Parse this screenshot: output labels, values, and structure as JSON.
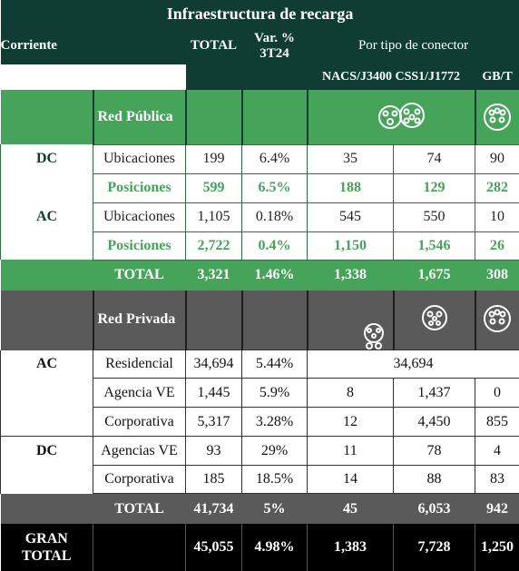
{
  "title": "Infraestructura de recarga",
  "header": {
    "corriente": "Corriente",
    "total": "TOTAL",
    "var": "Var. %",
    "var_period": "3T24",
    "por_tipo": "Por tipo de conector",
    "connectors": [
      "NACS/J3400",
      "CSS1/J1772",
      "GB/T"
    ]
  },
  "publica": {
    "label": "Red Pública",
    "dc_label": "DC",
    "ac_label": "AC",
    "rows": [
      {
        "type": "Ubicaciones",
        "total": "199",
        "var": "6.4%",
        "c1": "35",
        "c2": "74",
        "c3": "90"
      },
      {
        "type": "Posiciones",
        "total": "599",
        "var": "6.5%",
        "c1": "188",
        "c2": "129",
        "c3": "282"
      },
      {
        "type": "Ubicaciones",
        "total": "1,105",
        "var": "0.18%",
        "c1": "545",
        "c2": "550",
        "c3": "10"
      },
      {
        "type": "Posiciones",
        "total": "2,722",
        "var": "0.4%",
        "c1": "1,150",
        "c2": "1,546",
        "c3": "26"
      }
    ],
    "total": {
      "label": "TOTAL",
      "total": "3,321",
      "var": "1.46%",
      "c1": "1,338",
      "c2": "1,675",
      "c3": "308"
    }
  },
  "privada": {
    "label": "Red Privada",
    "ac_label": "AC",
    "dc_label": "DC",
    "residencial": {
      "type": "Residencial",
      "total": "34,694",
      "var": "5.44%",
      "merged": "34,694"
    },
    "rows": [
      {
        "type": "Agencia VE",
        "total": "1,445",
        "var": "5.9%",
        "c1": "8",
        "c2": "1,437",
        "c3": "0"
      },
      {
        "type": "Corporativa",
        "total": "5,317",
        "var": "3.28%",
        "c1": "12",
        "c2": "4,450",
        "c3": "855"
      },
      {
        "type": "Agencias VE",
        "total": "93",
        "var": "29%",
        "c1": "11",
        "c2": "78",
        "c3": "4"
      },
      {
        "type": "Corporativa",
        "total": "185",
        "var": "18.5%",
        "c1": "14",
        "c2": "88",
        "c3": "83"
      }
    ],
    "total": {
      "label": "TOTAL",
      "total": "41,734",
      "var": "5%",
      "c1": "45",
      "c2": "6,053",
      "c3": "942"
    }
  },
  "grand": {
    "label_1": "GRAN",
    "label_2": "TOTAL",
    "total": "45,055",
    "var": "4.98%",
    "c1": "1,383",
    "c2": "7,728",
    "c3": "1,250"
  },
  "icons": [
    "connector-nacs-icon",
    "connector-ccs1-icon",
    "connector-j1772-icon",
    "connector-gbt-icon"
  ],
  "colors": {
    "dark_green": "#0f3d33",
    "green": "#46a35a",
    "grey": "#5a5a5a",
    "black": "#000000"
  }
}
